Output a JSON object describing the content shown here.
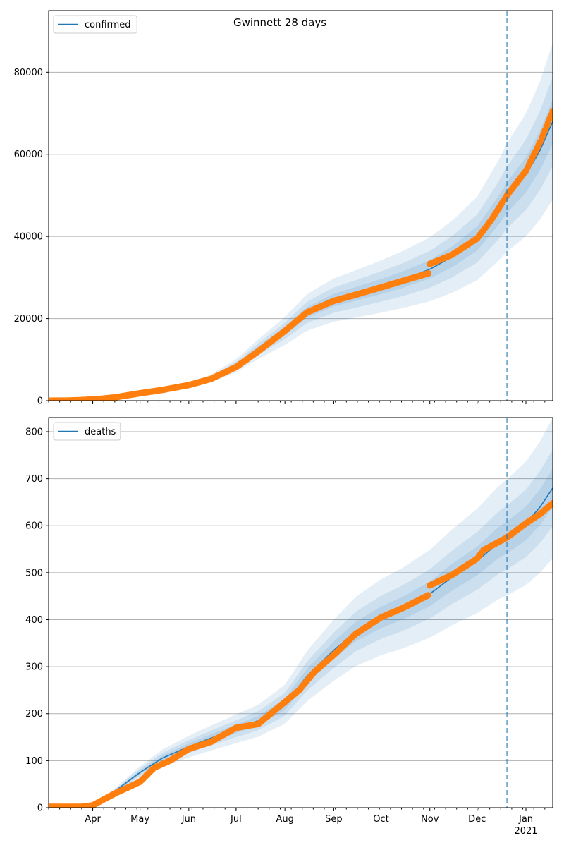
{
  "colors": {
    "model": "#1f77b4",
    "observed": "#ff7f0e",
    "band": "#1f77b4",
    "grid": "#b0b0b0",
    "vline": "#1f77b4"
  },
  "chart_data": {
    "type": "line",
    "title": "Gwinnett 28 days",
    "x_axis": {
      "tick_labels": [
        "Apr",
        "May",
        "Jun",
        "Jul",
        "Aug",
        "Sep",
        "Oct",
        "Nov",
        "Dec",
        "Jan"
      ],
      "tick_dates": [
        "2020-04-01",
        "2020-05-01",
        "2020-06-01",
        "2020-07-01",
        "2020-08-01",
        "2020-09-01",
        "2020-10-01",
        "2020-11-01",
        "2020-12-01",
        "2021-01-01"
      ],
      "year_label": "2021",
      "range": [
        "2020-03-04",
        "2021-01-18"
      ]
    },
    "forecast_start_date": "2020-12-20",
    "grid": "y",
    "panels": [
      {
        "legend": "confirmed",
        "legend_position": "top-left",
        "ylim": [
          0,
          95000
        ],
        "y_ticks": [
          0,
          20000,
          40000,
          60000,
          80000
        ],
        "y_tick_labels": [
          "0",
          "20000",
          "40000",
          "60000",
          "80000"
        ],
        "model_series": {
          "name": "confirmed",
          "points": [
            [
              "2020-03-04",
              0
            ],
            [
              "2020-03-20",
              100
            ],
            [
              "2020-04-01",
              300
            ],
            [
              "2020-04-15",
              800
            ],
            [
              "2020-05-01",
              1900
            ],
            [
              "2020-05-15",
              2700
            ],
            [
              "2020-06-01",
              3900
            ],
            [
              "2020-06-15",
              5400
            ],
            [
              "2020-07-01",
              8500
            ],
            [
              "2020-07-15",
              12500
            ],
            [
              "2020-08-01",
              17000
            ],
            [
              "2020-08-15",
              21500
            ],
            [
              "2020-09-01",
              24500
            ],
            [
              "2020-09-15",
              26000
            ],
            [
              "2020-10-01",
              27800
            ],
            [
              "2020-10-15",
              29500
            ],
            [
              "2020-11-01",
              32000
            ],
            [
              "2020-11-15",
              35000
            ],
            [
              "2020-12-01",
              39500
            ],
            [
              "2020-12-15",
              46500
            ],
            [
              "2020-12-20",
              49500
            ],
            [
              "2021-01-01",
              55000
            ],
            [
              "2021-01-10",
              61000
            ],
            [
              "2021-01-18",
              68000
            ]
          ]
        },
        "uncertainty_bands": [
          {
            "label": "inner",
            "spread_at_start": 0.04,
            "spread_at_end": 0.08
          },
          {
            "label": "middle",
            "spread_at_start": 0.08,
            "spread_at_end": 0.16
          },
          {
            "label": "outer",
            "spread_at_start": 0.13,
            "spread_at_end": 0.28
          }
        ],
        "observed": {
          "name": "observed",
          "points": [
            [
              "2020-03-04",
              0
            ],
            [
              "2020-03-15",
              20
            ],
            [
              "2020-03-25",
              150
            ],
            [
              "2020-04-05",
              400
            ],
            [
              "2020-04-15",
              800
            ],
            [
              "2020-05-01",
              1800
            ],
            [
              "2020-05-15",
              2600
            ],
            [
              "2020-06-01",
              3800
            ],
            [
              "2020-06-15",
              5300
            ],
            [
              "2020-07-01",
              8200
            ],
            [
              "2020-07-15",
              12000
            ],
            [
              "2020-08-01",
              17000
            ],
            [
              "2020-08-15",
              21500
            ],
            [
              "2020-09-01",
              24300
            ],
            [
              "2020-09-15",
              25800
            ],
            [
              "2020-10-01",
              27600
            ],
            [
              "2020-10-15",
              29200
            ],
            [
              "2020-10-31",
              31000
            ],
            [
              "2020-11-01",
              33300
            ],
            [
              "2020-11-15",
              35500
            ],
            [
              "2020-12-01",
              39500
            ],
            [
              "2020-12-10",
              44000
            ],
            [
              "2020-12-20",
              50000
            ],
            [
              "2021-01-01",
              56000
            ],
            [
              "2021-01-10",
              63000
            ],
            [
              "2021-01-18",
              70500
            ]
          ]
        }
      },
      {
        "legend": "deaths",
        "legend_position": "top-left",
        "ylim": [
          0,
          830
        ],
        "y_ticks": [
          0,
          100,
          200,
          300,
          400,
          500,
          600,
          700,
          800
        ],
        "y_tick_labels": [
          "0",
          "100",
          "200",
          "300",
          "400",
          "500",
          "600",
          "700",
          "800"
        ],
        "model_series": {
          "name": "deaths",
          "points": [
            [
              "2020-03-04",
              0
            ],
            [
              "2020-03-25",
              0
            ],
            [
              "2020-04-01",
              5
            ],
            [
              "2020-04-15",
              35
            ],
            [
              "2020-05-01",
              75
            ],
            [
              "2020-05-15",
              105
            ],
            [
              "2020-06-01",
              130
            ],
            [
              "2020-06-15",
              148
            ],
            [
              "2020-07-01",
              168
            ],
            [
              "2020-07-15",
              185
            ],
            [
              "2020-08-01",
              220
            ],
            [
              "2020-08-15",
              280
            ],
            [
              "2020-09-01",
              335
            ],
            [
              "2020-09-15",
              375
            ],
            [
              "2020-10-01",
              405
            ],
            [
              "2020-10-15",
              425
            ],
            [
              "2020-11-01",
              455
            ],
            [
              "2020-11-15",
              490
            ],
            [
              "2020-12-01",
              525
            ],
            [
              "2020-12-15",
              565
            ],
            [
              "2020-12-20",
              575
            ],
            [
              "2021-01-01",
              605
            ],
            [
              "2021-01-10",
              640
            ],
            [
              "2021-01-18",
              680
            ]
          ]
        },
        "uncertainty_bands": [
          {
            "label": "inner",
            "spread_at_start": 0.05,
            "spread_at_end": 0.06
          },
          {
            "label": "middle",
            "spread_at_start": 0.1,
            "spread_at_end": 0.12
          },
          {
            "label": "outer",
            "spread_at_start": 0.16,
            "spread_at_end": 0.22
          }
        ],
        "observed": {
          "name": "observed",
          "points": [
            [
              "2020-03-04",
              2
            ],
            [
              "2020-03-25",
              2
            ],
            [
              "2020-04-01",
              5
            ],
            [
              "2020-04-15",
              30
            ],
            [
              "2020-05-01",
              55
            ],
            [
              "2020-05-10",
              85
            ],
            [
              "2020-05-20",
              100
            ],
            [
              "2020-06-01",
              125
            ],
            [
              "2020-06-15",
              140
            ],
            [
              "2020-07-01",
              170
            ],
            [
              "2020-07-15",
              178
            ],
            [
              "2020-08-01",
              225
            ],
            [
              "2020-08-10",
              250
            ],
            [
              "2020-08-20",
              290
            ],
            [
              "2020-09-01",
              325
            ],
            [
              "2020-09-15",
              370
            ],
            [
              "2020-10-01",
              405
            ],
            [
              "2020-10-15",
              425
            ],
            [
              "2020-10-31",
              452
            ],
            [
              "2020-11-01",
              473
            ],
            [
              "2020-11-15",
              495
            ],
            [
              "2020-12-01",
              530
            ],
            [
              "2020-12-05",
              548
            ],
            [
              "2020-12-20",
              575
            ],
            [
              "2021-01-01",
              605
            ],
            [
              "2021-01-10",
              625
            ],
            [
              "2021-01-18",
              648
            ]
          ]
        }
      }
    ]
  }
}
